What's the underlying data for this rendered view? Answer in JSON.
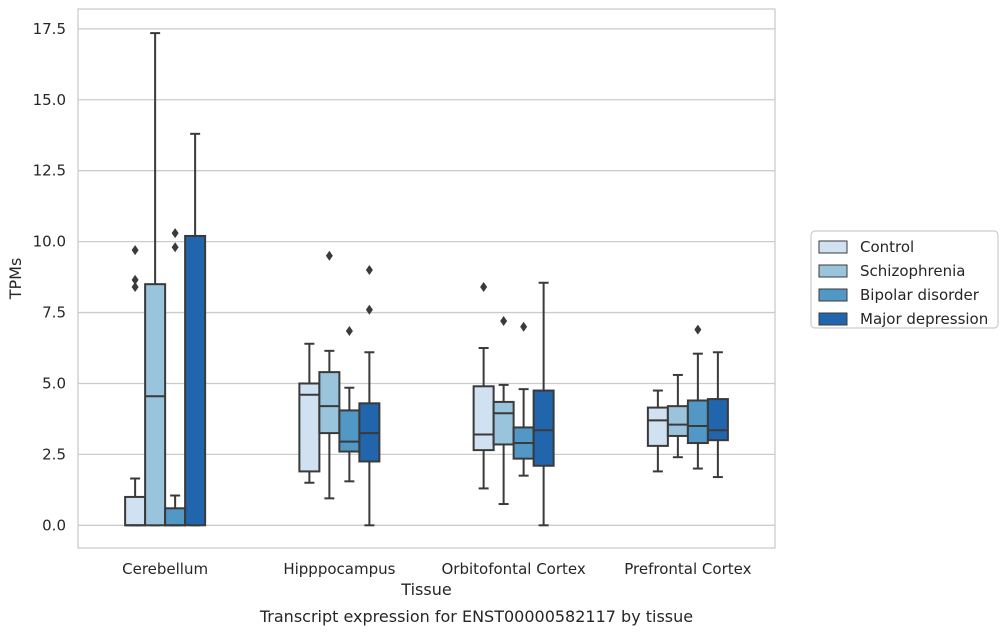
{
  "chart_data": {
    "type": "box",
    "title": "",
    "caption": "Transcript expression for ENST00000582117 by tissue",
    "xlabel": "Tissue",
    "ylabel": "TPMs",
    "ylim": [
      -0.8,
      18.2
    ],
    "yticks": [
      "0.0",
      "2.5",
      "5.0",
      "7.5",
      "10.0",
      "12.5",
      "15.0",
      "17.5"
    ],
    "grid": "horizontal",
    "legend_position": "right",
    "categories": [
      "Cerebellum",
      "Hipppocampus",
      "Orbitofontal Cortex",
      "Prefrontal Cortex"
    ],
    "series": [
      {
        "name": "Control",
        "color": "#d0e1f2",
        "boxes": [
          {
            "whislo": 0.0,
            "q1": 0.0,
            "med": 0.0,
            "q3": 1.0,
            "whishi": 1.65,
            "fliers": [
              8.4,
              8.65,
              9.7
            ]
          },
          {
            "whislo": 1.5,
            "q1": 1.9,
            "med": 4.6,
            "q3": 5.0,
            "whishi": 6.4,
            "fliers": []
          },
          {
            "whislo": 1.3,
            "q1": 2.65,
            "med": 3.2,
            "q3": 4.9,
            "whishi": 6.25,
            "fliers": [
              8.4
            ]
          },
          {
            "whislo": 1.9,
            "q1": 2.8,
            "med": 3.7,
            "q3": 4.15,
            "whishi": 4.75,
            "fliers": []
          }
        ]
      },
      {
        "name": "Schizophrenia",
        "color": "#9ac3dc",
        "boxes": [
          {
            "whislo": 0.0,
            "q1": 0.0,
            "med": 4.55,
            "q3": 8.5,
            "whishi": 17.35,
            "fliers": []
          },
          {
            "whislo": 0.95,
            "q1": 3.25,
            "med": 4.2,
            "q3": 5.4,
            "whishi": 6.15,
            "fliers": [
              9.5
            ]
          },
          {
            "whislo": 0.75,
            "q1": 2.85,
            "med": 3.95,
            "q3": 4.35,
            "whishi": 4.95,
            "fliers": [
              7.2
            ]
          },
          {
            "whislo": 2.4,
            "q1": 3.15,
            "med": 3.55,
            "q3": 4.2,
            "whishi": 5.3,
            "fliers": []
          }
        ]
      },
      {
        "name": "Bipolar disorder",
        "color": "#5198c7",
        "boxes": [
          {
            "whislo": 0.0,
            "q1": 0.0,
            "med": 0.0,
            "q3": 0.6,
            "whishi": 1.05,
            "fliers": [
              9.8,
              10.3
            ]
          },
          {
            "whislo": 1.55,
            "q1": 2.6,
            "med": 2.95,
            "q3": 4.05,
            "whishi": 4.85,
            "fliers": [
              6.85
            ]
          },
          {
            "whislo": 1.75,
            "q1": 2.35,
            "med": 2.9,
            "q3": 3.45,
            "whishi": 4.8,
            "fliers": [
              7.0
            ]
          },
          {
            "whislo": 2.0,
            "q1": 2.9,
            "med": 3.5,
            "q3": 4.4,
            "whishi": 6.05,
            "fliers": [
              6.9
            ]
          }
        ]
      },
      {
        "name": "Major depression",
        "color": "#2166ac",
        "boxes": [
          {
            "whislo": 0.0,
            "q1": 0.0,
            "med": 10.2,
            "q3": 10.2,
            "whishi": 13.8,
            "fliers": []
          },
          {
            "whislo": 0.0,
            "q1": 2.25,
            "med": 3.25,
            "q3": 4.3,
            "whishi": 6.1,
            "fliers": [
              7.6,
              9.0
            ]
          },
          {
            "whislo": 0.0,
            "q1": 2.1,
            "med": 3.35,
            "q3": 4.75,
            "whishi": 8.55,
            "fliers": []
          },
          {
            "whislo": 1.7,
            "q1": 3.0,
            "med": 3.35,
            "q3": 4.45,
            "whishi": 6.1,
            "fliers": []
          }
        ]
      }
    ]
  }
}
